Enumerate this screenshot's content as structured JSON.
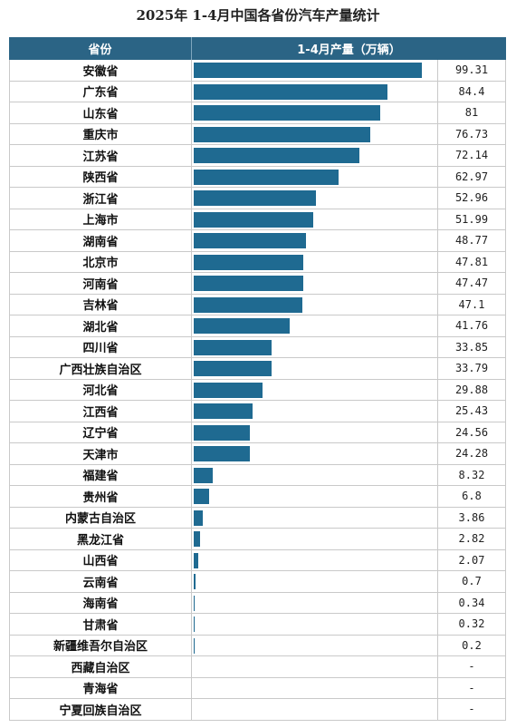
{
  "title": "2025年 1-4月中国各省份汽车产量统计",
  "header": {
    "col_province": "省份",
    "col_value": "1-4月产量（万辆）"
  },
  "colors": {
    "header_bg": "#2b6485",
    "bar": "#1f6a91"
  },
  "chart_data": {
    "type": "bar",
    "title": "2025年 1-4月中国各省份汽车产量统计",
    "xlabel": "",
    "ylabel": "1-4月产量（万辆）",
    "categories": [
      "安徽省",
      "广东省",
      "山东省",
      "重庆市",
      "江苏省",
      "陕西省",
      "浙江省",
      "上海市",
      "湖南省",
      "北京市",
      "河南省",
      "吉林省",
      "湖北省",
      "四川省",
      "广西壮族自治区",
      "河北省",
      "江西省",
      "辽宁省",
      "天津市",
      "福建省",
      "贵州省",
      "内蒙古自治区",
      "黑龙江省",
      "山西省",
      "云南省",
      "海南省",
      "甘肃省",
      "新疆维吾尔自治区",
      "西藏自治区",
      "青海省",
      "宁夏回族自治区"
    ],
    "values": [
      99.31,
      84.4,
      81,
      76.73,
      72.14,
      62.97,
      52.96,
      51.99,
      48.77,
      47.81,
      47.47,
      47.1,
      41.76,
      33.85,
      33.79,
      29.88,
      25.43,
      24.56,
      24.28,
      8.32,
      6.8,
      3.86,
      2.82,
      2.07,
      0.7,
      0.34,
      0.32,
      0.2,
      null,
      null,
      null
    ],
    "value_labels": [
      "99.31",
      "84.4",
      "81",
      "76.73",
      "72.14",
      "62.97",
      "52.96",
      "51.99",
      "48.77",
      "47.81",
      "47.47",
      "47.1",
      "41.76",
      "33.85",
      "33.79",
      "29.88",
      "25.43",
      "24.56",
      "24.28",
      "8.32",
      "6.8",
      "3.86",
      "2.82",
      "2.07",
      "0.7",
      "0.34",
      "0.32",
      "0.2",
      "-",
      "-",
      "-"
    ],
    "xlim": [
      0,
      100
    ]
  }
}
